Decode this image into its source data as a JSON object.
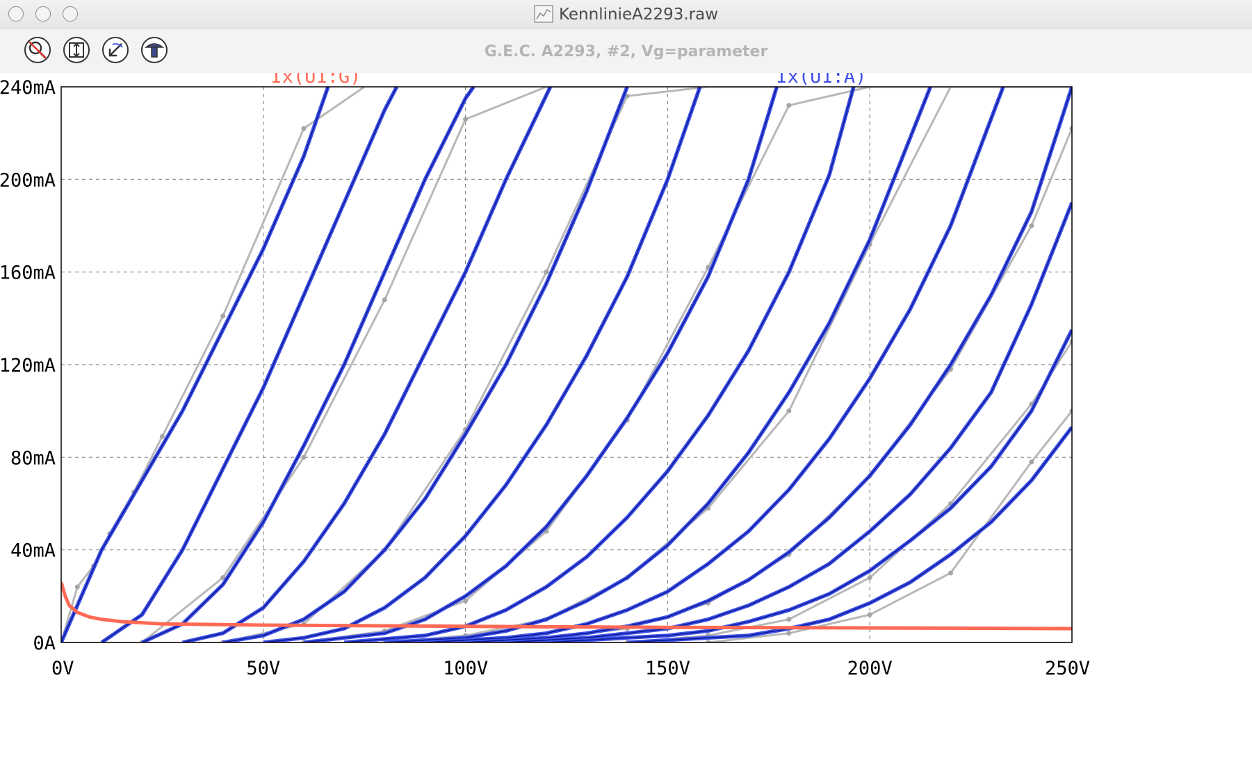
{
  "window": {
    "title": "KennlinieA2293.raw"
  },
  "toolbar": {
    "icons": [
      "zoom-off-icon",
      "autorange-icon",
      "zoom-back-icon",
      "probe-icon"
    ]
  },
  "colors": {
    "anode": "#3f51e6",
    "grid": "#ff6a55",
    "measured": "#b8b8b8",
    "model": "#0a1a9a"
  },
  "chart_data": {
    "type": "line",
    "title": "G.E.C. A2293, #2, Vg=parameter",
    "xlabel": "",
    "ylabel": "",
    "xlim": [
      0,
      250
    ],
    "ylim": [
      0,
      240
    ],
    "x_ticks": [
      "0V",
      "50V",
      "100V",
      "150V",
      "200V",
      "250V"
    ],
    "y_ticks": [
      "0A",
      "40mA",
      "80mA",
      "120mA",
      "160mA",
      "200mA",
      "240mA"
    ],
    "grid": true,
    "series": [
      {
        "name": "Ix(U1:A)",
        "color": "#3f51e6",
        "curves": [
          {
            "x": [
              0,
              10,
              20,
              30,
              40,
              50,
              60,
              66
            ],
            "y": [
              0,
              40,
              70,
              100,
              135,
              170,
              210,
              240
            ]
          },
          {
            "x": [
              10,
              20,
              30,
              40,
              50,
              60,
              70,
              80,
              83
            ],
            "y": [
              0,
              12,
              40,
              75,
              110,
              150,
              190,
              230,
              240
            ]
          },
          {
            "x": [
              20,
              30,
              40,
              50,
              60,
              70,
              80,
              90,
              100,
              102
            ],
            "y": [
              0,
              8,
              25,
              52,
              85,
              120,
              160,
              200,
              235,
              240
            ]
          },
          {
            "x": [
              30,
              40,
              50,
              60,
              70,
              80,
              90,
              100,
              110,
              121
            ],
            "y": [
              0,
              4,
              15,
              35,
              60,
              90,
              125,
              160,
              200,
              240
            ]
          },
          {
            "x": [
              40,
              50,
              60,
              70,
              80,
              90,
              100,
              110,
              120,
              130,
              140
            ],
            "y": [
              0,
              3,
              10,
              22,
              40,
              62,
              90,
              120,
              155,
              195,
              240
            ]
          },
          {
            "x": [
              50,
              60,
              70,
              80,
              90,
              100,
              110,
              120,
              130,
              140,
              150,
              158
            ],
            "y": [
              0,
              2,
              6,
              15,
              28,
              46,
              68,
              94,
              124,
              158,
              200,
              240
            ]
          },
          {
            "x": [
              60,
              80,
              90,
              100,
              110,
              120,
              130,
              140,
              150,
              160,
              170,
              177
            ],
            "y": [
              0,
              4,
              10,
              20,
              33,
              50,
              72,
              97,
              125,
              158,
              200,
              240
            ]
          },
          {
            "x": [
              70,
              90,
              100,
              110,
              120,
              130,
              140,
              150,
              160,
              170,
              180,
              190,
              196
            ],
            "y": [
              0,
              3,
              7,
              14,
              24,
              37,
              54,
              74,
              98,
              126,
              160,
              202,
              240
            ]
          },
          {
            "x": [
              80,
              100,
              110,
              120,
              130,
              140,
              150,
              160,
              170,
              180,
              190,
              200,
              215
            ],
            "y": [
              0,
              2,
              5,
              10,
              18,
              28,
              42,
              60,
              82,
              108,
              138,
              174,
              240
            ]
          },
          {
            "x": [
              90,
              110,
              120,
              130,
              140,
              150,
              160,
              170,
              180,
              190,
              200,
              210,
              220,
              233
            ],
            "y": [
              0,
              2,
              4,
              8,
              14,
              22,
              34,
              48,
              66,
              88,
              114,
              144,
              180,
              240
            ]
          },
          {
            "x": [
              100,
              120,
              130,
              140,
              150,
              160,
              170,
              180,
              190,
              200,
              210,
              220,
              230,
              240,
              250
            ],
            "y": [
              0,
              2,
              4,
              7,
              11,
              18,
              27,
              39,
              54,
              72,
              94,
              120,
              150,
              186,
              240
            ]
          },
          {
            "x": [
              110,
              130,
              140,
              150,
              160,
              170,
              180,
              190,
              200,
              210,
              220,
              230,
              240,
              250
            ],
            "y": [
              0,
              2,
              4,
              6,
              10,
              16,
              24,
              34,
              48,
              64,
              84,
              108,
              146,
              190
            ]
          },
          {
            "x": [
              120,
              140,
              150,
              160,
              170,
              180,
              190,
              200,
              210,
              220,
              230,
              240,
              250
            ],
            "y": [
              0,
              2,
              3,
              5,
              9,
              14,
              21,
              31,
              44,
              58,
              76,
              100,
              135
            ]
          },
          {
            "x": [
              140,
              160,
              170,
              180,
              190,
              200,
              210,
              220,
              230,
              240,
              250
            ],
            "y": [
              0,
              2,
              3,
              6,
              10,
              17,
              26,
              38,
              52,
              70,
              93
            ]
          }
        ]
      },
      {
        "name": "Ix(U1:G)",
        "color": "#ff6a55",
        "curves": [
          {
            "x": [
              0,
              1,
              2,
              4,
              7,
              10,
              15,
              25,
              50,
              100,
              150,
              200,
              250
            ],
            "y": [
              26,
              20,
              16,
              13,
              11,
              10,
              9,
              8,
              7.5,
              7,
              6.5,
              6.3,
              6
            ]
          }
        ]
      },
      {
        "name": "",
        "color": "#b8b8b8",
        "curves": [
          {
            "x": [
              0,
              4,
              8,
              12,
              18,
              25,
              40,
              60,
              75
            ],
            "y": [
              0,
              24,
              33,
              47,
              65,
              89,
              141,
              222,
              240
            ]
          },
          {
            "x": [
              20,
              40,
              60,
              80,
              100,
              120,
              140
            ],
            "y": [
              0,
              28,
              80,
              148,
              226,
              240,
              240
            ]
          },
          {
            "x": [
              40,
              60,
              80,
              100,
              120,
              140,
              160,
              180
            ],
            "y": [
              0,
              8,
              40,
              92,
              160,
              236,
              240,
              240
            ]
          },
          {
            "x": [
              60,
              80,
              100,
              120,
              140,
              160,
              180,
              200,
              220
            ],
            "y": [
              0,
              5,
              18,
              48,
              96,
              162,
              232,
              240,
              240
            ]
          },
          {
            "x": [
              80,
              100,
              120,
              140,
              160,
              180,
              200,
              220,
              240,
              250
            ],
            "y": [
              0,
              3,
              10,
              28,
              58,
              100,
              172,
              240,
              240,
              240
            ]
          },
          {
            "x": [
              100,
              120,
              140,
              160,
              180,
              200,
              220,
              240,
              250
            ],
            "y": [
              0,
              2,
              6,
              17,
              38,
              72,
              118,
              180,
              222
            ]
          },
          {
            "x": [
              140,
              160,
              180,
              200,
              220,
              240,
              250
            ],
            "y": [
              0,
              3,
              10,
              28,
              60,
              103,
              130
            ]
          },
          {
            "x": [
              160,
              180,
              200,
              220,
              240,
              250
            ],
            "y": [
              0,
              4,
              12,
              30,
              78,
              100
            ]
          }
        ]
      }
    ]
  }
}
